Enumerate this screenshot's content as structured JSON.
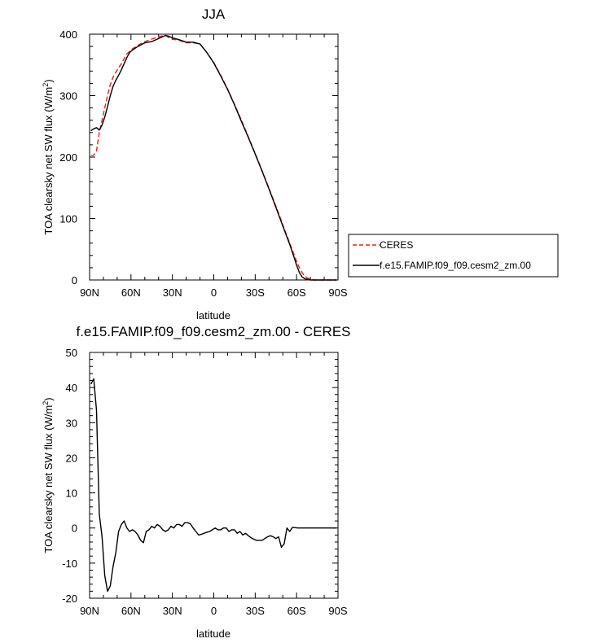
{
  "chart_data": [
    {
      "type": "line",
      "title": "JJA",
      "xlabel": "latitude",
      "ylabel_main": "TOA clearsky net SW flux (W/m",
      "ylabel_sup": "2",
      "ylabel_close": ")",
      "xlim": [
        90,
        -90
      ],
      "ylim": [
        0,
        400
      ],
      "x_ticks": [
        90,
        60,
        30,
        0,
        -30,
        -60,
        -90
      ],
      "x_tick_labels": [
        "90N",
        "60N",
        "30N",
        "0",
        "30S",
        "60S",
        "90S"
      ],
      "y_ticks": [
        0,
        100,
        200,
        300,
        400
      ],
      "y_tick_labels": [
        "0",
        "100",
        "200",
        "300",
        "400"
      ],
      "legend_position": "right",
      "series": [
        {
          "name": "CERES",
          "color": "#e8201c",
          "dash": "dashed",
          "x": [
            89,
            87,
            85,
            83,
            81,
            79,
            77,
            75,
            73,
            71,
            69,
            67,
            65,
            63,
            61,
            59,
            55,
            50,
            45,
            40,
            35,
            33,
            30,
            25,
            20,
            15,
            10,
            5,
            0,
            -5,
            -10,
            -15,
            -20,
            -25,
            -30,
            -35,
            -40,
            -45,
            -50,
            -55,
            -58,
            -60,
            -62,
            -64,
            -66,
            -68,
            -70,
            -72,
            -74,
            -76,
            -78,
            -80,
            -82,
            -84,
            -86,
            -89
          ],
          "values": [
            202,
            203,
            210,
            240,
            260,
            280,
            300,
            318,
            330,
            338,
            345,
            352,
            360,
            368,
            372,
            376,
            382,
            388,
            392,
            396,
            398,
            395,
            392,
            390,
            386,
            386,
            384,
            370,
            354,
            333,
            311,
            286,
            260,
            233,
            206,
            178,
            149,
            120,
            90,
            60,
            42,
            30,
            20,
            12,
            6,
            3,
            1,
            0,
            0,
            0,
            0,
            0,
            0,
            0,
            0,
            0
          ]
        },
        {
          "name": "f.e15.FAMIP.f09_f09.cesm2_zm.00",
          "color": "#000000",
          "dash": "solid",
          "x": [
            89,
            87,
            85,
            83,
            81,
            79,
            77,
            75,
            73,
            71,
            69,
            67,
            65,
            63,
            61,
            59,
            55,
            50,
            45,
            40,
            35,
            33,
            30,
            25,
            20,
            15,
            10,
            5,
            0,
            -5,
            -10,
            -15,
            -20,
            -25,
            -30,
            -35,
            -40,
            -45,
            -50,
            -55,
            -58,
            -60,
            -62,
            -64,
            -66,
            -68,
            -70,
            -72,
            -74,
            -76,
            -78,
            -80,
            -82,
            -84,
            -86,
            -89
          ],
          "values": [
            243,
            246,
            248,
            244,
            252,
            265,
            282,
            300,
            315,
            325,
            333,
            342,
            352,
            362,
            370,
            374,
            380,
            386,
            388,
            393,
            398,
            397,
            394,
            391,
            387,
            387,
            384,
            370,
            353,
            332,
            310,
            285,
            258,
            232,
            205,
            177,
            148,
            118,
            88,
            58,
            38,
            24,
            12,
            5,
            2,
            1,
            0,
            0,
            0,
            0,
            0,
            0,
            0,
            0,
            0,
            0
          ]
        }
      ]
    },
    {
      "type": "line",
      "title": "f.e15.FAMIP.f09_f09.cesm2_zm.00 - CERES",
      "xlabel": "latitude",
      "ylabel_main": "TOA clearsky net SW flux (W/m",
      "ylabel_sup": "2",
      "ylabel_close": ")",
      "xlim": [
        90,
        -90
      ],
      "ylim": [
        -20,
        50
      ],
      "x_ticks": [
        90,
        60,
        30,
        0,
        -30,
        -60,
        -90
      ],
      "x_tick_labels": [
        "90N",
        "60N",
        "30N",
        "0",
        "30S",
        "60S",
        "90S"
      ],
      "y_ticks": [
        -20,
        -10,
        0,
        10,
        20,
        30,
        40,
        50
      ],
      "y_tick_labels": [
        "-20",
        "-10",
        "0",
        "10",
        "20",
        "30",
        "40",
        "50"
      ],
      "series": [
        {
          "color": "#000000",
          "x": [
            89,
            87,
            85,
            83,
            81,
            79,
            77,
            75,
            73,
            71,
            69,
            67,
            65,
            63,
            61,
            59,
            57,
            55,
            53,
            51,
            49,
            47,
            45,
            43,
            41,
            39,
            37,
            35,
            33,
            31,
            29,
            27,
            25,
            23,
            21,
            19,
            17,
            15,
            13,
            11,
            9,
            7,
            5,
            3,
            1,
            -1,
            -3,
            -5,
            -7,
            -9,
            -11,
            -13,
            -15,
            -17,
            -19,
            -21,
            -23,
            -25,
            -27,
            -29,
            -31,
            -33,
            -35,
            -37,
            -39,
            -41,
            -43,
            -45,
            -47,
            -49,
            -51,
            -53,
            -55,
            -57,
            -59,
            -61,
            -63,
            -65,
            -67,
            -69,
            -71,
            -73,
            -75,
            -77,
            -79,
            -81,
            -83,
            -85,
            -87,
            -89
          ],
          "values": [
            41,
            42.5,
            33.5,
            4,
            -2.5,
            -13.5,
            -18,
            -16.5,
            -11,
            -7,
            -1,
            1,
            2,
            0,
            -1,
            -0.5,
            -1,
            -2,
            -3.5,
            -4.2,
            -1,
            -0.5,
            0.5,
            0,
            1,
            0.5,
            -0.5,
            -1,
            -0.5,
            0.5,
            0,
            1,
            1,
            0.5,
            1.5,
            1.5,
            1.2,
            0,
            -1,
            -2,
            -1.8,
            -1.5,
            -1.2,
            -1,
            -0.5,
            0,
            -0.5,
            -0.5,
            0,
            0,
            -1,
            -0.5,
            -0.5,
            -1.5,
            -1,
            -2,
            -1.5,
            -2.2,
            -2.8,
            -3.2,
            -3.5,
            -3.5,
            -3.5,
            -3,
            -2.5,
            -2.2,
            -2.5,
            -3,
            -2.5,
            -5.5,
            -4.5,
            0,
            -1,
            0.2,
            0.1,
            0,
            0,
            0,
            0,
            0,
            0,
            0,
            0,
            0,
            0,
            0,
            0,
            0,
            0,
            0
          ]
        }
      ]
    }
  ]
}
